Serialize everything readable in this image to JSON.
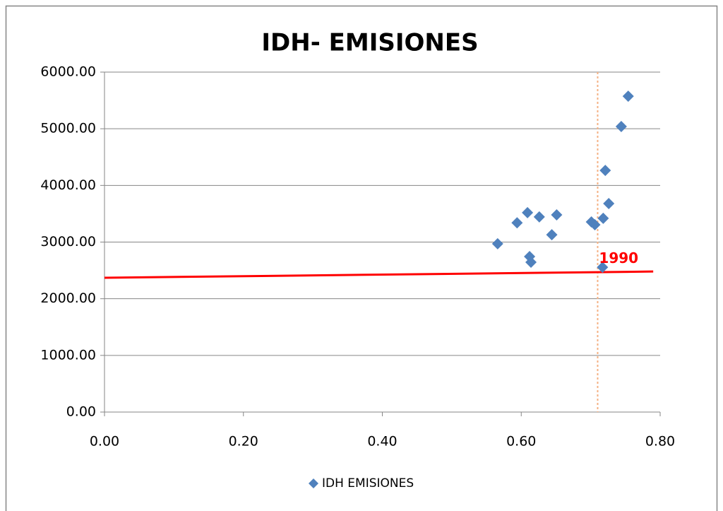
{
  "chart_data": {
    "type": "scatter",
    "title": "IDH- EMISIONES",
    "series": [
      {
        "name": "IDH EMISIONES",
        "color": "#4f81bd",
        "x": [
          0.566,
          0.594,
          0.609,
          0.612,
          0.614,
          0.626,
          0.644,
          0.651,
          0.701,
          0.706,
          0.717,
          0.718,
          0.721,
          0.726,
          0.744,
          0.754
        ],
        "values": [
          2970,
          3340,
          3520,
          2745,
          2645,
          3445,
          3130,
          3480,
          3355,
          3305,
          2555,
          3420,
          4265,
          3680,
          5040,
          5575
        ]
      }
    ],
    "trend_line": {
      "color": "#ff0000",
      "x": [
        0,
        0.79
      ],
      "values": [
        2370,
        2480
      ]
    },
    "vertical_line": {
      "color": "#f4b183",
      "x": 0.71
    },
    "annotation": {
      "text": "1990",
      "color": "#ff0000",
      "x": 0.712,
      "y": 2700
    },
    "xlim": [
      0,
      0.8
    ],
    "ylim": [
      0,
      6000
    ],
    "xticks": [
      {
        "value": 0,
        "label": "0.00"
      },
      {
        "value": 0.2,
        "label": "0.20"
      },
      {
        "value": 0.4,
        "label": "0.40"
      },
      {
        "value": 0.6,
        "label": "0.60"
      },
      {
        "value": 0.8,
        "label": "0.80"
      }
    ],
    "yticks": [
      {
        "value": 0,
        "label": "0.00"
      },
      {
        "value": 1000,
        "label": "1000.00"
      },
      {
        "value": 2000,
        "label": "2000.00"
      },
      {
        "value": 3000,
        "label": "3000.00"
      },
      {
        "value": 4000,
        "label": "4000.00"
      },
      {
        "value": 5000,
        "label": "5000.00"
      },
      {
        "value": 6000,
        "label": "6000.00"
      }
    ],
    "grid": true,
    "legend": "bottom"
  }
}
